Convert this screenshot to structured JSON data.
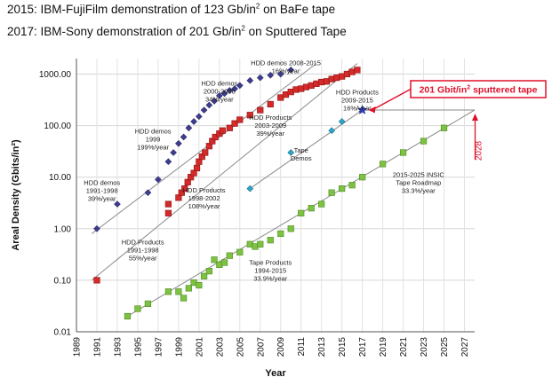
{
  "headlines": [
    {
      "pre": "2015: IBM-FujiFilm demonstration of 123 Gb/in",
      "sup": "2",
      "post": " on BaFe tape"
    },
    {
      "pre": "2017: IBM-Sony demonstration of 201 Gb/in",
      "sup": "2",
      "post": " on Sputtered Tape"
    }
  ],
  "chart_data": {
    "type": "scatter",
    "xlabel": "Year",
    "ylabel": "Areal Density (Gbits/in²)",
    "xlim": [
      1989,
      2028
    ],
    "ylim": [
      0.01,
      2000
    ],
    "log_y": true,
    "grid": true,
    "x_ticks": [
      1989,
      1991,
      1993,
      1995,
      1997,
      1999,
      2001,
      2003,
      2005,
      2007,
      2009,
      2011,
      2013,
      2015,
      2017,
      2019,
      2021,
      2023,
      2025,
      2027
    ],
    "y_ticks": [
      {
        "value": 0.01,
        "label": "0.01"
      },
      {
        "value": 0.1,
        "label": "0.10"
      },
      {
        "value": 1,
        "label": "1.00"
      },
      {
        "value": 10,
        "label": "10.00"
      },
      {
        "value": 100,
        "label": "100.00"
      },
      {
        "value": 1000,
        "label": "1000.00"
      }
    ],
    "series": [
      {
        "marker": "diamond",
        "color": "#3f3d8f",
        "stroke": "#2a2866",
        "points": [
          [
            1991,
            1
          ],
          [
            1993,
            3
          ],
          [
            1996,
            5
          ],
          [
            1997,
            9
          ],
          [
            1998,
            20
          ],
          [
            1998.5,
            30
          ],
          [
            1999,
            45
          ],
          [
            1999.5,
            60
          ],
          [
            2000,
            90
          ],
          [
            2000.5,
            120
          ],
          [
            2001,
            150
          ],
          [
            2001.5,
            200
          ],
          [
            2002,
            250
          ],
          [
            2002.5,
            300
          ],
          [
            2003,
            380
          ],
          [
            2003.5,
            420
          ],
          [
            2004,
            480
          ],
          [
            2004.5,
            520
          ],
          [
            2005,
            600
          ],
          [
            2006,
            750
          ],
          [
            2007,
            850
          ],
          [
            2008,
            950
          ],
          [
            2009,
            1000
          ],
          [
            2010,
            1200
          ]
        ]
      },
      {
        "marker": "square",
        "color": "#d42a2a",
        "stroke": "#8e1414",
        "points": [
          [
            1991,
            0.1
          ],
          [
            1998,
            2
          ],
          [
            1998,
            3
          ],
          [
            1999,
            4
          ],
          [
            1999.3,
            5
          ],
          [
            1999.6,
            6
          ],
          [
            1999.9,
            8
          ],
          [
            2000.2,
            10
          ],
          [
            2000.5,
            12
          ],
          [
            2000.8,
            15
          ],
          [
            2001,
            20
          ],
          [
            2001.3,
            25
          ],
          [
            2001.6,
            30
          ],
          [
            2002,
            40
          ],
          [
            2002.3,
            50
          ],
          [
            2002.6,
            60
          ],
          [
            2003,
            70
          ],
          [
            2003.3,
            80
          ],
          [
            2004,
            90
          ],
          [
            2004.5,
            110
          ],
          [
            2005,
            130
          ],
          [
            2006,
            160
          ],
          [
            2007,
            200
          ],
          [
            2008,
            260
          ],
          [
            2009,
            350
          ],
          [
            2009.5,
            400
          ],
          [
            2010,
            450
          ],
          [
            2010.5,
            500
          ],
          [
            2011,
            520
          ],
          [
            2011.5,
            560
          ],
          [
            2012,
            600
          ],
          [
            2012.5,
            650
          ],
          [
            2013,
            700
          ],
          [
            2013.5,
            720
          ],
          [
            2014,
            800
          ],
          [
            2014.5,
            850
          ],
          [
            2015,
            900
          ],
          [
            2015.5,
            1000
          ],
          [
            2016,
            1100
          ],
          [
            2016.5,
            1200
          ]
        ]
      },
      {
        "marker": "diamond",
        "color": "#2fa6c9",
        "stroke": "#156d87",
        "points": [
          [
            2006,
            6
          ],
          [
            2010,
            30
          ],
          [
            2014,
            80
          ],
          [
            2015,
            120
          ]
        ]
      },
      {
        "marker": "square",
        "color": "#7dc243",
        "stroke": "#4c8a1c",
        "points": [
          [
            1994,
            0.02
          ],
          [
            1995,
            0.028
          ],
          [
            1996,
            0.035
          ],
          [
            1998,
            0.06
          ],
          [
            1999,
            0.06
          ],
          [
            1999.5,
            0.045
          ],
          [
            2000,
            0.07
          ],
          [
            2000.5,
            0.09
          ],
          [
            2001,
            0.08
          ],
          [
            2001.5,
            0.12
          ],
          [
            2002,
            0.15
          ],
          [
            2002.5,
            0.25
          ],
          [
            2003,
            0.2
          ],
          [
            2003.5,
            0.22
          ],
          [
            2004,
            0.3
          ],
          [
            2005,
            0.35
          ],
          [
            2006,
            0.5
          ],
          [
            2006.5,
            0.45
          ],
          [
            2007,
            0.5
          ],
          [
            2008,
            0.6
          ],
          [
            2009,
            0.8
          ],
          [
            2010,
            1
          ],
          [
            2011,
            2
          ],
          [
            2012,
            2.5
          ],
          [
            2013,
            3
          ],
          [
            2014,
            5
          ],
          [
            2015,
            6
          ],
          [
            2016,
            7
          ],
          [
            2017,
            10
          ],
          [
            2019,
            18
          ],
          [
            2021,
            30
          ],
          [
            2023,
            50
          ],
          [
            2025,
            90
          ]
        ]
      }
    ],
    "star": {
      "x": 2017,
      "y": 201
    },
    "trend_lines": [
      {
        "from": [
          1990.5,
          0.8
        ],
        "to": [
          2012.5,
          1600
        ]
      },
      {
        "from": [
          1990.5,
          0.1
        ],
        "to": [
          2016.5,
          1600
        ]
      },
      {
        "from": [
          2006,
          6
        ],
        "to": [
          2017,
          201
        ]
      },
      {
        "from": [
          2017,
          201
        ],
        "to": [
          2028,
          201
        ]
      },
      {
        "from": [
          1994,
          0.02
        ],
        "to": [
          2028,
          201
        ]
      }
    ],
    "annotations": [
      {
        "x": 1991.5,
        "y": 7,
        "lines": [
          "HDD demos",
          "1991-1998",
          "39%/year"
        ]
      },
      {
        "x": 1996.5,
        "y": 70,
        "lines": [
          "HDD demos",
          "1999",
          "199%/year"
        ]
      },
      {
        "x": 2003,
        "y": 600,
        "lines": [
          "HDD demos",
          "2000-2008",
          "34%/year"
        ]
      },
      {
        "x": 2009.5,
        "y": 1500,
        "lines": [
          "HDD demos 2008-2015",
          "16%/year"
        ]
      },
      {
        "x": 2016.5,
        "y": 400,
        "lines": [
          "HDD Products",
          "2009-2015",
          "16%/year"
        ]
      },
      {
        "x": 2008,
        "y": 130,
        "lines": [
          "HDD Products",
          "2003-2009",
          "39%/year"
        ]
      },
      {
        "x": 2011,
        "y": 30,
        "lines": [
          "Tape",
          "Demos"
        ]
      },
      {
        "x": 2001.5,
        "y": 5,
        "lines": [
          "HDD Products",
          "1998-2002",
          "108%/year"
        ]
      },
      {
        "x": 1995.5,
        "y": 0.5,
        "lines": [
          "HDD Products",
          "1991-1998",
          "55%/year"
        ]
      },
      {
        "x": 2022.5,
        "y": 10,
        "lines": [
          "2015-2025 INSIC",
          "Tape Roadmap",
          "33.3%/year"
        ]
      },
      {
        "x": 2008,
        "y": 0.2,
        "lines": [
          "Tape Products",
          "1994-2015",
          "33.9%/year"
        ]
      }
    ],
    "callout": {
      "pre": "201 Gbit/in",
      "sup": "2",
      "post": " sputtered tape",
      "color": "#e0102a"
    },
    "marker_2028": {
      "label": "2028",
      "color": "#e0102a"
    }
  }
}
